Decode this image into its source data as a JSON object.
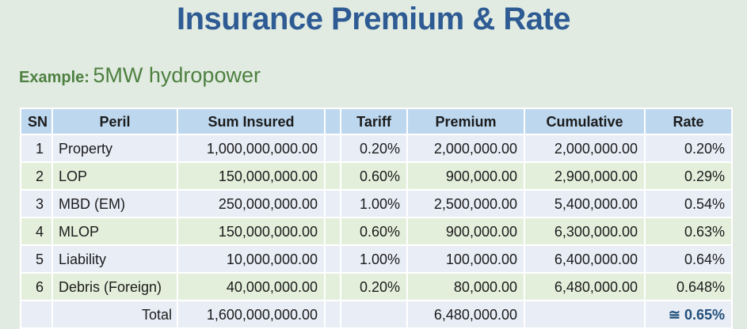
{
  "slide": {
    "title": "Insurance Premium & Rate",
    "example_label": "Example:",
    "example_value": "5MW hydropower"
  },
  "table": {
    "headers": {
      "sn": "SN",
      "peril": "Peril",
      "sum_insured": "Sum Insured",
      "spacer": "",
      "tariff": "Tariff",
      "premium": "Premium",
      "cumulative": "Cumulative",
      "rate": "Rate"
    },
    "rows": [
      {
        "sn": "1",
        "peril": "Property",
        "sum_insured": "1,000,000,000.00",
        "tariff": "0.20%",
        "premium": "2,000,000.00",
        "cumulative": "2,000,000.00",
        "rate": "0.20%"
      },
      {
        "sn": "2",
        "peril": "LOP",
        "sum_insured": "150,000,000.00",
        "tariff": "0.60%",
        "premium": "900,000.00",
        "cumulative": "2,900,000.00",
        "rate": "0.29%"
      },
      {
        "sn": "3",
        "peril": "MBD (EM)",
        "sum_insured": "250,000,000.00",
        "tariff": "1.00%",
        "premium": "2,500,000.00",
        "cumulative": "5,400,000.00",
        "rate": "0.54%"
      },
      {
        "sn": "4",
        "peril": "MLOP",
        "sum_insured": "150,000,000.00",
        "tariff": "0.60%",
        "premium": "900,000.00",
        "cumulative": "6,300,000.00",
        "rate": "0.63%"
      },
      {
        "sn": "5",
        "peril": "Liability",
        "sum_insured": "10,000,000.00",
        "tariff": "1.00%",
        "premium": "100,000.00",
        "cumulative": "6,400,000.00",
        "rate": "0.64%"
      },
      {
        "sn": "6",
        "peril": "Debris (Foreign)",
        "sum_insured": "40,000,000.00",
        "tariff": "0.20%",
        "premium": "80,000.00",
        "cumulative": "6,480,000.00",
        "rate": "0.648%"
      }
    ],
    "total": {
      "label": "Total",
      "sum_insured": "1,600,000,000.00",
      "premium": "6,480,000.00",
      "rate": "≅ 0.65%"
    }
  },
  "colors": {
    "background": "#E1EBE2",
    "title": "#2E5B93",
    "example_green": "#4E8040",
    "header_bg": "#BDD7EE",
    "row_blue": "#E9EDF6",
    "row_green": "#E3EFDB",
    "total_rate_text": "#1F4E79",
    "gridline": "#FFFFFF"
  }
}
